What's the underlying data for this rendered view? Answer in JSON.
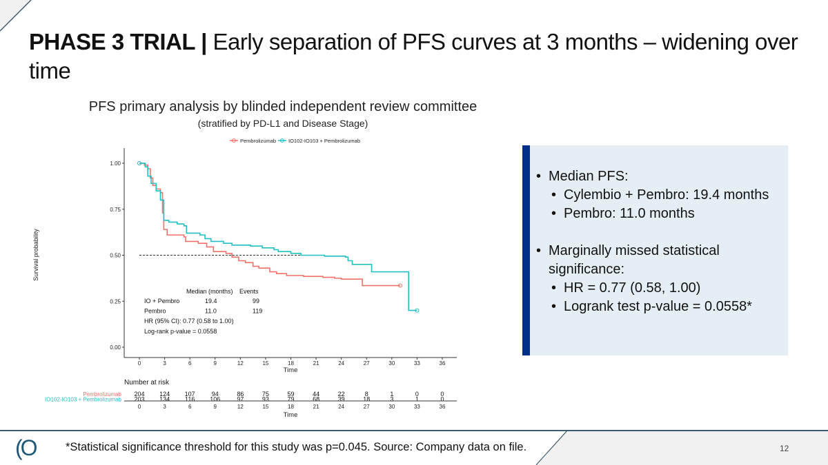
{
  "title": {
    "bold": "PHASE 3 TRIAL |",
    "rest": " Early separation of PFS curves at 3 months – widening over time"
  },
  "chart_data": {
    "type": "line",
    "title": "PFS primary analysis by blinded independent review committee",
    "subtitle": "(stratified by PD-L1 and Disease Stage)",
    "xlabel": "Time",
    "ylabel": "Survival probability",
    "xlim": [
      0,
      36
    ],
    "ylim": [
      0,
      1
    ],
    "xticks": [
      "0",
      "3",
      "6",
      "9",
      "12",
      "15",
      "18",
      "21",
      "24",
      "27",
      "30",
      "33",
      "36"
    ],
    "yticks": [
      "0.00",
      "0.25",
      "0.50",
      "0.75",
      "1.00"
    ],
    "legend_position": "top",
    "median_line": 0.5,
    "series": [
      {
        "name": "Pembrolizumab",
        "color": "#f07167",
        "steps": [
          [
            0,
            1
          ],
          [
            0.6,
            0.99
          ],
          [
            1,
            0.97
          ],
          [
            1.3,
            0.92
          ],
          [
            1.6,
            0.88
          ],
          [
            2,
            0.86
          ],
          [
            2.5,
            0.84
          ],
          [
            2.75,
            0.73
          ],
          [
            2.9,
            0.64
          ],
          [
            3.3,
            0.61
          ],
          [
            5.3,
            0.6
          ],
          [
            5.5,
            0.575
          ],
          [
            7,
            0.565
          ],
          [
            8,
            0.545
          ],
          [
            8.8,
            0.52
          ],
          [
            10.3,
            0.51
          ],
          [
            11,
            0.49
          ],
          [
            11.8,
            0.47
          ],
          [
            12.6,
            0.46
          ],
          [
            13.5,
            0.44
          ],
          [
            14.2,
            0.43
          ],
          [
            15.5,
            0.41
          ],
          [
            16.3,
            0.4
          ],
          [
            17.5,
            0.39
          ],
          [
            19.5,
            0.385
          ],
          [
            21.8,
            0.38
          ],
          [
            23.2,
            0.375
          ],
          [
            24,
            0.37
          ],
          [
            26.5,
            0.335
          ],
          [
            31,
            0.335
          ]
        ],
        "end": [
          31,
          0.335
        ]
      },
      {
        "name": "IO102-IO103 + Pembrolizumab",
        "color": "#1fbfc6",
        "steps": [
          [
            0,
            1
          ],
          [
            0.7,
            0.98
          ],
          [
            1,
            0.93
          ],
          [
            1.4,
            0.89
          ],
          [
            2,
            0.85
          ],
          [
            2.5,
            0.8
          ],
          [
            2.9,
            0.69
          ],
          [
            3.5,
            0.68
          ],
          [
            4.5,
            0.67
          ],
          [
            5.3,
            0.66
          ],
          [
            5.6,
            0.62
          ],
          [
            7.2,
            0.61
          ],
          [
            7.8,
            0.59
          ],
          [
            8.5,
            0.575
          ],
          [
            10,
            0.565
          ],
          [
            11,
            0.555
          ],
          [
            13.2,
            0.55
          ],
          [
            14.6,
            0.54
          ],
          [
            16,
            0.53
          ],
          [
            16.5,
            0.52
          ],
          [
            18,
            0.51
          ],
          [
            19.2,
            0.5
          ],
          [
            22,
            0.495
          ],
          [
            24.5,
            0.49
          ],
          [
            24.8,
            0.47
          ],
          [
            25.3,
            0.45
          ],
          [
            27.6,
            0.41
          ],
          [
            32,
            0.41
          ],
          [
            32,
            0.2
          ],
          [
            33,
            0.2
          ]
        ],
        "end": [
          33,
          0.2
        ]
      }
    ],
    "annotation": {
      "header": [
        "Median (months)",
        "Events"
      ],
      "rows": [
        [
          "IO + Pembro",
          "19.4",
          "99"
        ],
        [
          "Pembro",
          "11.0",
          "119"
        ]
      ],
      "hr": "HR (95% CI): 0.77 (0.58 to 1.00)",
      "logrank": "Log-rank p-value = 0.0558"
    },
    "risk_table": {
      "title": "Number at risk",
      "xlabel": "Time",
      "rows": [
        {
          "name": "Pembrolizumab",
          "color": "#f07167",
          "values": [
            "204",
            "124",
            "107",
            "94",
            "86",
            "75",
            "59",
            "44",
            "22",
            "8",
            "1",
            "0",
            "0"
          ]
        },
        {
          "name": "IO102-IO103 + Pembrolizumab",
          "color": "#1fbfc6",
          "values": [
            "203",
            "134",
            "116",
            "106",
            "97",
            "93",
            "79",
            "68",
            "39",
            "18",
            "3",
            "1",
            "0"
          ]
        }
      ]
    }
  },
  "panel": {
    "accent": "#003087",
    "items": [
      {
        "text": "Median PFS:",
        "level": 0
      },
      {
        "text": "Cylembio + Pembro: 19.4 months",
        "level": 1
      },
      {
        "text": "Pembro: 11.0 months",
        "level": 1
      },
      {
        "text": "Marginally missed statistical significance:",
        "level": 0
      },
      {
        "text": "HR = 0.77 (0.58, 1.00)",
        "level": 1
      },
      {
        "text": "Logrank test p-value = 0.0558*",
        "level": 1
      }
    ]
  },
  "footer": {
    "note": "*Statistical significance threshold for this study was p=0.045. Source: Company data on file.",
    "page": "12",
    "logo": "IO"
  }
}
